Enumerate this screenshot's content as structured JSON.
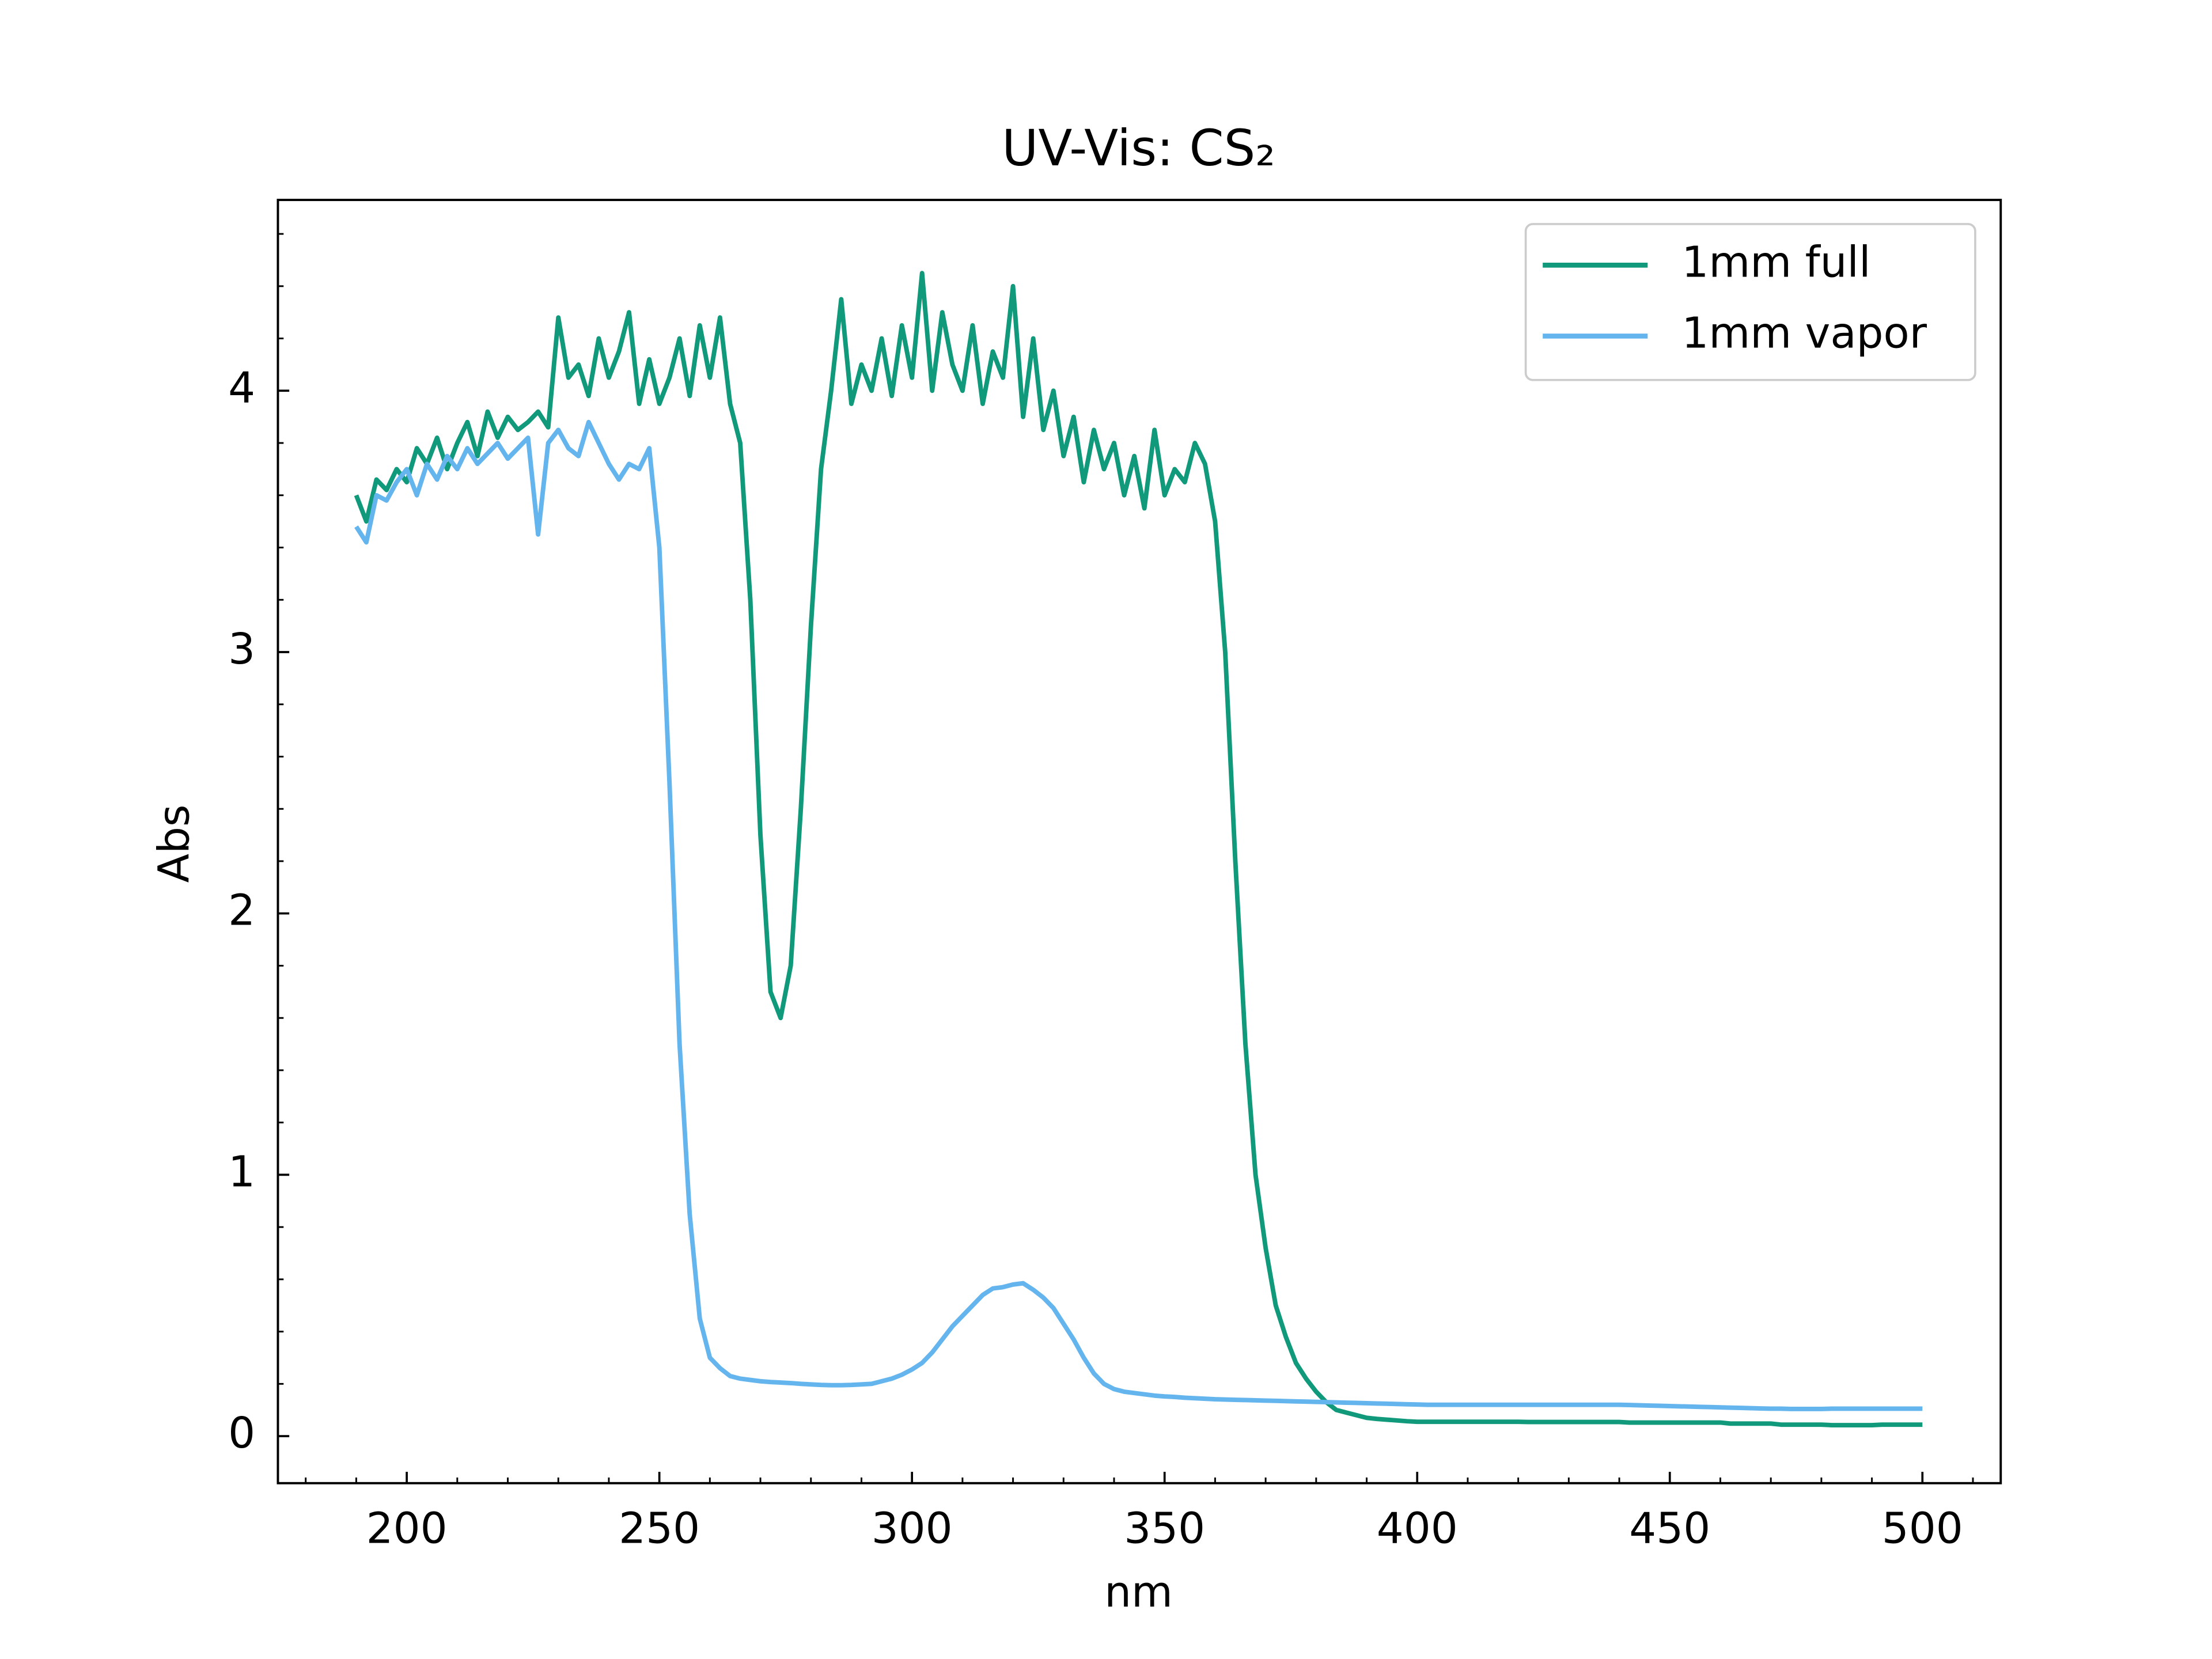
{
  "chart_data": {
    "type": "line",
    "title": "UV-Vis: CS₂",
    "x_label": "nm",
    "y_label": "Abs",
    "xlim": [
      174.5,
      515.5
    ],
    "ylim": [
      -0.18,
      4.73
    ],
    "xticks": [
      200,
      250,
      300,
      350,
      400,
      450,
      500
    ],
    "yticks": [
      0,
      1,
      2,
      3,
      4
    ],
    "legend": "upper right",
    "x": [
      190,
      192,
      194,
      196,
      198,
      200,
      202,
      204,
      206,
      208,
      210,
      212,
      214,
      216,
      218,
      220,
      222,
      224,
      226,
      228,
      230,
      232,
      234,
      236,
      238,
      240,
      242,
      244,
      246,
      248,
      250,
      252,
      254,
      256,
      258,
      260,
      262,
      264,
      266,
      268,
      270,
      272,
      274,
      276,
      278,
      280,
      282,
      284,
      286,
      288,
      290,
      292,
      294,
      296,
      298,
      300,
      302,
      304,
      306,
      308,
      310,
      312,
      314,
      316,
      318,
      320,
      322,
      324,
      326,
      328,
      330,
      332,
      334,
      336,
      338,
      340,
      342,
      344,
      346,
      348,
      350,
      352,
      354,
      356,
      358,
      360,
      362,
      364,
      366,
      368,
      370,
      372,
      374,
      376,
      378,
      380,
      382,
      384,
      386,
      388,
      390,
      392,
      394,
      396,
      398,
      400,
      402,
      404,
      406,
      408,
      410,
      412,
      414,
      416,
      418,
      420,
      422,
      424,
      426,
      428,
      430,
      432,
      434,
      436,
      438,
      440,
      442,
      444,
      446,
      448,
      450,
      452,
      454,
      456,
      458,
      460,
      462,
      464,
      466,
      468,
      470,
      472,
      474,
      476,
      478,
      480,
      482,
      484,
      486,
      488,
      490,
      492,
      494,
      496,
      498,
      500
    ],
    "series": [
      {
        "name": "1mm full",
        "color": "#10997a",
        "values": [
          3.6,
          3.5,
          3.66,
          3.62,
          3.7,
          3.65,
          3.78,
          3.72,
          3.82,
          3.7,
          3.8,
          3.88,
          3.75,
          3.92,
          3.82,
          3.9,
          3.85,
          3.88,
          3.92,
          3.86,
          4.28,
          4.05,
          4.1,
          3.98,
          4.2,
          4.05,
          4.15,
          4.3,
          3.95,
          4.12,
          3.95,
          4.05,
          4.2,
          3.98,
          4.25,
          4.05,
          4.28,
          3.95,
          3.8,
          3.2,
          2.3,
          1.7,
          1.6,
          1.8,
          2.4,
          3.1,
          3.7,
          4.0,
          4.35,
          3.95,
          4.1,
          4.0,
          4.2,
          3.98,
          4.25,
          4.05,
          4.45,
          4.0,
          4.3,
          4.1,
          4.0,
          4.25,
          3.95,
          4.15,
          4.05,
          4.4,
          3.9,
          4.2,
          3.85,
          4.0,
          3.75,
          3.9,
          3.65,
          3.85,
          3.7,
          3.8,
          3.6,
          3.75,
          3.55,
          3.85,
          3.6,
          3.7,
          3.65,
          3.8,
          3.72,
          3.5,
          3.0,
          2.2,
          1.5,
          1.0,
          0.72,
          0.5,
          0.38,
          0.28,
          0.22,
          0.17,
          0.13,
          0.1,
          0.09,
          0.08,
          0.07,
          0.066,
          0.063,
          0.06,
          0.057,
          0.055,
          0.055,
          0.055,
          0.055,
          0.055,
          0.055,
          0.055,
          0.055,
          0.055,
          0.055,
          0.055,
          0.054,
          0.054,
          0.054,
          0.054,
          0.054,
          0.054,
          0.054,
          0.054,
          0.054,
          0.054,
          0.052,
          0.052,
          0.052,
          0.052,
          0.052,
          0.052,
          0.052,
          0.052,
          0.052,
          0.052,
          0.048,
          0.048,
          0.048,
          0.048,
          0.048,
          0.044,
          0.044,
          0.044,
          0.044,
          0.044,
          0.042,
          0.042,
          0.042,
          0.042,
          0.042,
          0.044,
          0.044,
          0.044,
          0.044,
          0.044
        ]
      },
      {
        "name": "1mm vapor",
        "color": "#64b4ee",
        "values": [
          3.48,
          3.42,
          3.6,
          3.58,
          3.65,
          3.7,
          3.6,
          3.72,
          3.66,
          3.75,
          3.7,
          3.78,
          3.72,
          3.76,
          3.8,
          3.74,
          3.78,
          3.82,
          3.45,
          3.8,
          3.85,
          3.78,
          3.75,
          3.88,
          3.8,
          3.72,
          3.66,
          3.72,
          3.7,
          3.78,
          3.4,
          2.5,
          1.5,
          0.85,
          0.45,
          0.3,
          0.26,
          0.23,
          0.22,
          0.215,
          0.21,
          0.207,
          0.205,
          0.203,
          0.2,
          0.198,
          0.196,
          0.195,
          0.195,
          0.196,
          0.198,
          0.2,
          0.21,
          0.22,
          0.235,
          0.255,
          0.28,
          0.32,
          0.37,
          0.42,
          0.46,
          0.5,
          0.54,
          0.565,
          0.57,
          0.58,
          0.585,
          0.56,
          0.53,
          0.49,
          0.43,
          0.37,
          0.3,
          0.24,
          0.2,
          0.18,
          0.17,
          0.165,
          0.16,
          0.155,
          0.152,
          0.15,
          0.147,
          0.145,
          0.143,
          0.141,
          0.14,
          0.139,
          0.138,
          0.137,
          0.136,
          0.135,
          0.134,
          0.133,
          0.132,
          0.131,
          0.13,
          0.129,
          0.128,
          0.127,
          0.126,
          0.125,
          0.124,
          0.123,
          0.122,
          0.121,
          0.12,
          0.12,
          0.12,
          0.12,
          0.12,
          0.12,
          0.12,
          0.12,
          0.12,
          0.12,
          0.12,
          0.12,
          0.12,
          0.12,
          0.12,
          0.12,
          0.12,
          0.12,
          0.12,
          0.12,
          0.119,
          0.118,
          0.117,
          0.116,
          0.115,
          0.114,
          0.113,
          0.112,
          0.111,
          0.11,
          0.109,
          0.108,
          0.107,
          0.106,
          0.105,
          0.105,
          0.104,
          0.104,
          0.104,
          0.104,
          0.105,
          0.105,
          0.105,
          0.105,
          0.105,
          0.105,
          0.105,
          0.105,
          0.105,
          0.105
        ]
      }
    ]
  }
}
